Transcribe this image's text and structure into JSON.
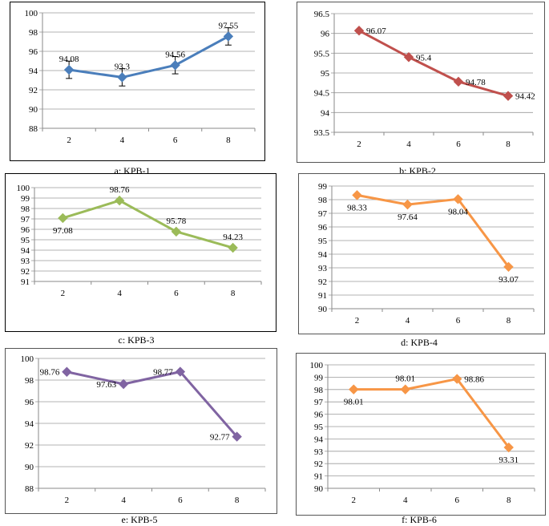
{
  "chart_data": [
    {
      "type": "line",
      "caption": "a: KPB-1",
      "categories": [
        "2",
        "4",
        "6",
        "8"
      ],
      "values": [
        94.08,
        93.3,
        94.56,
        97.55
      ],
      "labels": [
        "94.08",
        "93.3",
        "94.56",
        "97.55"
      ],
      "error": [
        0.9,
        0.9,
        0.9,
        0.9
      ],
      "yticks": [
        "88",
        "90",
        "92",
        "94",
        "96",
        "98",
        "100"
      ],
      "ylim": [
        88,
        100
      ],
      "color": "#4a7ebb",
      "marker": "diamond"
    },
    {
      "type": "line",
      "caption": "b: KPB-2",
      "categories": [
        "2",
        "4",
        "6",
        "8"
      ],
      "values": [
        96.07,
        95.4,
        94.78,
        94.42
      ],
      "labels": [
        "96.07",
        "95.4",
        "94.78",
        "94.42"
      ],
      "yticks": [
        "93.5",
        "94",
        "94.5",
        "95",
        "95.5",
        "96",
        "96.5"
      ],
      "ylim": [
        93.5,
        96.5
      ],
      "color": "#c0504d",
      "marker": "diamond"
    },
    {
      "type": "line",
      "caption": "c: KPB-3",
      "categories": [
        "2",
        "4",
        "6",
        "8"
      ],
      "values": [
        97.08,
        98.76,
        95.78,
        94.23
      ],
      "labels": [
        "97.08",
        "98.76",
        "95.78",
        "94.23"
      ],
      "yticks": [
        "91",
        "92",
        "93",
        "94",
        "95",
        "96",
        "97",
        "98",
        "99",
        "100"
      ],
      "ylim": [
        91,
        100
      ],
      "color": "#9bbb59",
      "marker": "diamond"
    },
    {
      "type": "line",
      "caption": "d: KPB-4",
      "categories": [
        "2",
        "4",
        "6",
        "8"
      ],
      "values": [
        98.33,
        97.64,
        98.04,
        93.07
      ],
      "labels": [
        "98.33",
        "97.64",
        "98.04",
        "93.07"
      ],
      "yticks": [
        "90",
        "91",
        "92",
        "93",
        "94",
        "95",
        "96",
        "97",
        "98",
        "99"
      ],
      "ylim": [
        90,
        99
      ],
      "color": "#f79646",
      "marker": "diamond"
    },
    {
      "type": "line",
      "caption": "e: KPB-5",
      "categories": [
        "2",
        "4",
        "6",
        "8"
      ],
      "values": [
        98.76,
        97.63,
        98.77,
        92.77
      ],
      "labels": [
        "98.76",
        "97.63",
        "98.77",
        "92.77"
      ],
      "yticks": [
        "88",
        "90",
        "92",
        "94",
        "96",
        "98",
        "100"
      ],
      "ylim": [
        88,
        100
      ],
      "color": "#8064a2",
      "marker": "diamond"
    },
    {
      "type": "line",
      "caption": "f: KPB-6",
      "categories": [
        "2",
        "4",
        "6",
        "8"
      ],
      "values": [
        98.01,
        98.01,
        98.86,
        93.31
      ],
      "labels": [
        "98.01",
        "98.01",
        "98.86",
        "93.31"
      ],
      "yticks": [
        "90",
        "91",
        "92",
        "93",
        "94",
        "95",
        "96",
        "97",
        "98",
        "99",
        "100"
      ],
      "ylim": [
        90,
        100
      ],
      "color": "#f79646",
      "marker": "diamond"
    }
  ]
}
